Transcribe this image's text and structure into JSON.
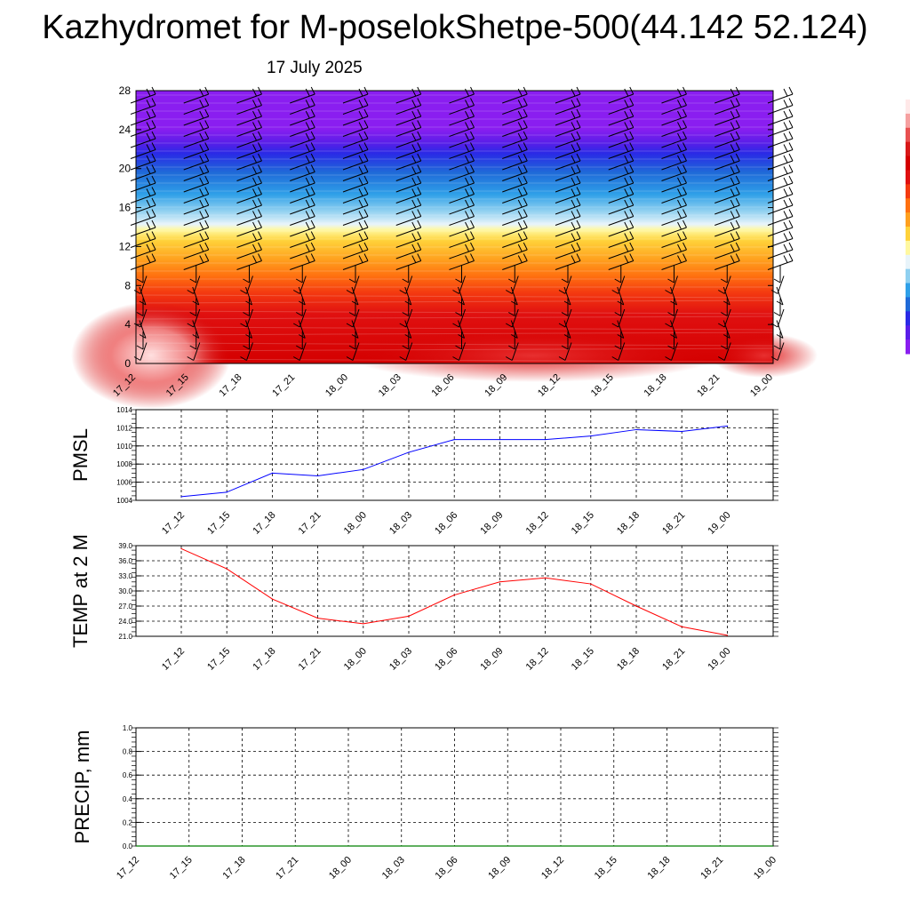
{
  "title": "Kazhydromet for M-poselokShetpe-500(44.142 52.124)",
  "date": "17 July 2025",
  "chart_data": [
    {
      "type": "heatmap",
      "panel": "wind-temperature-profile",
      "x_labels": [
        "17_12",
        "17_15",
        "17_18",
        "17_21",
        "18_00",
        "18_03",
        "18_06",
        "18_09",
        "18_12",
        "18_15",
        "18_18",
        "18_21",
        "19_00"
      ],
      "y_ticks": [
        0,
        4,
        8,
        12,
        16,
        20,
        24,
        28
      ],
      "ylim": [
        0,
        28
      ],
      "colorbar_colors": [
        "#8a1ef0",
        "#5a1ee8",
        "#2a2ae6",
        "#1f6ad8",
        "#2fa0e8",
        "#8fd0f0",
        "#e8f4fa",
        "#fff8a0",
        "#ffd23a",
        "#ffa01e",
        "#ff7010",
        "#f43a10",
        "#e01010",
        "#d40000",
        "#d81818",
        "#e85050",
        "#f6a0a0",
        "#ffe8e8"
      ],
      "grid": false
    },
    {
      "type": "line",
      "panel": "pmsl",
      "ylabel": "PMSL",
      "x": [
        "17_12",
        "17_15",
        "17_18",
        "17_21",
        "18_00",
        "18_03",
        "18_06",
        "18_09",
        "18_12",
        "18_15",
        "18_18",
        "18_21",
        "19_00"
      ],
      "y_ticks": [
        "1004",
        "1006",
        "1008",
        "1010",
        "1012",
        "1014"
      ],
      "ylim": [
        1004,
        1014
      ],
      "series": [
        {
          "values": [
            1004.4,
            1004.9,
            1007.0,
            1006.7,
            1007.4,
            1009.3,
            1010.7,
            1010.7,
            1010.7,
            1011.1,
            1011.8,
            1011.6,
            1012.2
          ],
          "color": "#0000ff"
        }
      ],
      "grid": true
    },
    {
      "type": "line",
      "panel": "temperature",
      "ylabel": "TEMP at 2 M",
      "x": [
        "17_12",
        "17_15",
        "17_18",
        "17_21",
        "18_00",
        "18_03",
        "18_06",
        "18_09",
        "18_12",
        "18_15",
        "18_18",
        "18_21",
        "19_00"
      ],
      "y_ticks": [
        "21.0",
        "24.0",
        "27.0",
        "30.0",
        "33.0",
        "36.0",
        "39.0"
      ],
      "ylim": [
        21,
        39
      ],
      "series": [
        {
          "values": [
            38.4,
            34.4,
            28.4,
            24.6,
            23.5,
            25.0,
            29.2,
            31.8,
            32.6,
            31.4,
            27.0,
            22.9,
            21.2
          ],
          "color": "#ff0000"
        }
      ],
      "grid": true
    },
    {
      "type": "line",
      "panel": "precipitation",
      "ylabel": "PRECIP, mm",
      "x_labels": [
        "17_12",
        "17_15",
        "17_18",
        "17_21",
        "18_00",
        "18_03",
        "18_06",
        "18_09",
        "18_12",
        "18_15",
        "18_18",
        "18_21",
        "19_00"
      ],
      "y_ticks": [
        "0.0",
        "0.2",
        "0.4",
        "0.6",
        "0.8",
        "1.0"
      ],
      "ylim": [
        0,
        1
      ],
      "series": [
        {
          "values": [
            0,
            0,
            0,
            0,
            0,
            0,
            0,
            0,
            0,
            0,
            0,
            0,
            0
          ],
          "color": "#008000"
        }
      ],
      "grid": true
    }
  ]
}
